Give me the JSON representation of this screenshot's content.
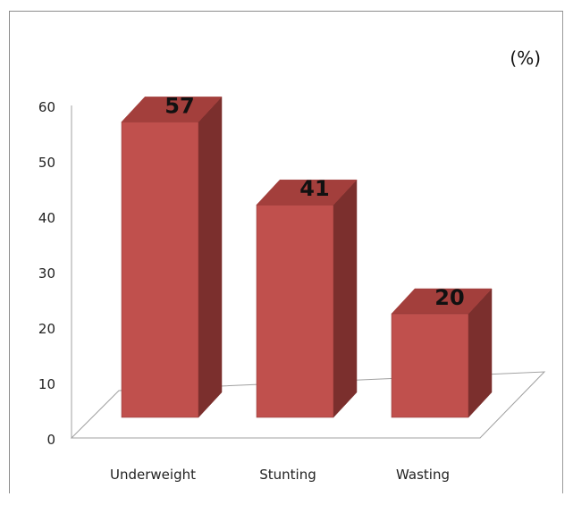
{
  "chart_data": {
    "type": "bar",
    "title": "",
    "unit_label": "(%)",
    "categories": [
      "Underweight",
      "Stunting",
      "Wasting"
    ],
    "values": [
      57,
      41,
      20
    ],
    "y_ticks": [
      "0",
      "10",
      "20",
      "30",
      "40",
      "50",
      "60"
    ],
    "ylim": [
      0,
      60
    ],
    "grid": false,
    "legend": "none",
    "three_d": true,
    "colors": {
      "front": "#c0504d",
      "side": "#7b2f2d",
      "top": "#a33f3c",
      "edge": "#8a3532",
      "floor_line": "#a0a0a0",
      "axis_line": "#a0a0a0"
    }
  }
}
